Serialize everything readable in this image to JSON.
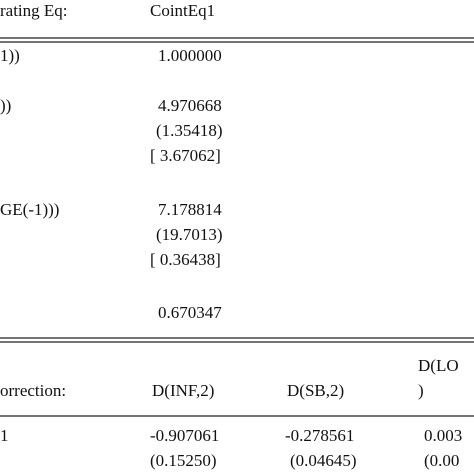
{
  "cointegration": {
    "header": {
      "label": "rating Eq:",
      "column": "CointEq1"
    },
    "rows": [
      {
        "label": "1))",
        "value": "1.000000"
      },
      {
        "label": "))",
        "value": "4.970668",
        "se": "(1.35418)",
        "t": "[ 3.67062]"
      },
      {
        "label": "GE(-1)))",
        "value": "7.178814",
        "se": "(19.7013)",
        "t": "[ 0.36438]"
      },
      {
        "value": "0.670347"
      }
    ]
  },
  "error_correction": {
    "header": {
      "label": "orrection:",
      "columns": [
        "D(INF,2)",
        "D(SB,2)",
        "D(LO"
      ],
      "column_continuation": ")"
    },
    "rows": [
      {
        "label": "1",
        "values": [
          "-0.907061",
          "-0.278561",
          "0.003"
        ],
        "se": [
          "(0.15250)",
          "(0.04645)",
          "(0.00"
        ]
      }
    ]
  }
}
